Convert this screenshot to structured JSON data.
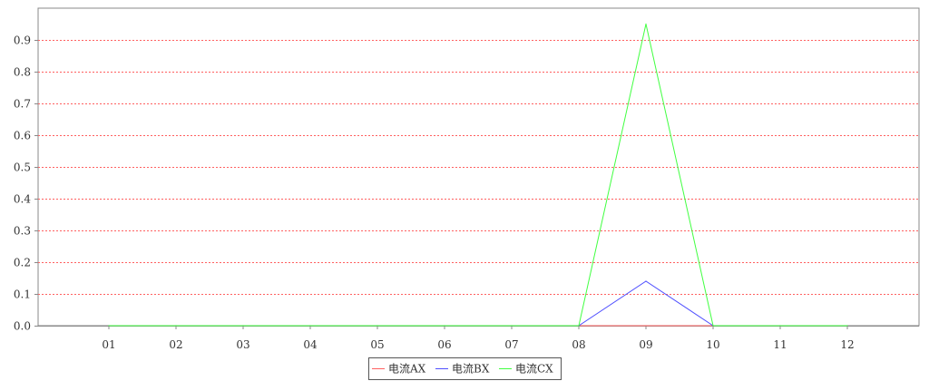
{
  "chart_data": {
    "type": "line",
    "categories": [
      "01",
      "02",
      "03",
      "04",
      "05",
      "06",
      "07",
      "08",
      "09",
      "10",
      "11",
      "12"
    ],
    "series": [
      {
        "name": "电流AX",
        "color": "#ff6060",
        "values": [
          0,
          0,
          0,
          0,
          0,
          0,
          0,
          0,
          0,
          0,
          0,
          0
        ]
      },
      {
        "name": "电流BX",
        "color": "#5050ff",
        "values": [
          0,
          0,
          0,
          0,
          0,
          0,
          0,
          0,
          0.14,
          0,
          0,
          0
        ]
      },
      {
        "name": "电流CX",
        "color": "#40ff40",
        "values": [
          0,
          0,
          0,
          0,
          0,
          0,
          0,
          0,
          0.95,
          0,
          0,
          0
        ]
      }
    ],
    "y_ticks": [
      "0.0",
      "0.1",
      "0.2",
      "0.3",
      "0.4",
      "0.5",
      "0.6",
      "0.7",
      "0.8",
      "0.9"
    ],
    "ylim": [
      0,
      1
    ],
    "grid": true,
    "grid_color": "#ff6060",
    "legend_position": "bottom-center"
  }
}
